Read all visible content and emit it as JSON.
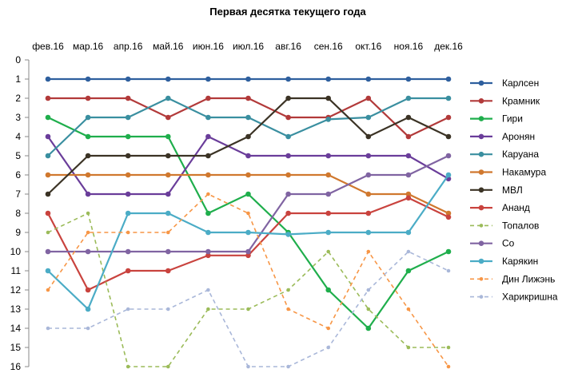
{
  "chart_data": {
    "type": "line",
    "title": "Первая десятка текущего года",
    "xlabel": "",
    "ylabel": "",
    "categories": [
      "фев.16",
      "мар.16",
      "апр.16",
      "май.16",
      "июн.16",
      "июл.16",
      "авг.16",
      "сен.16",
      "окт.16",
      "ноя.16",
      "дек.16"
    ],
    "y_axis": {
      "min": 0,
      "max": 16,
      "reversed": true,
      "ticks": [
        0,
        1,
        2,
        3,
        4,
        5,
        6,
        7,
        8,
        9,
        10,
        11,
        12,
        13,
        14,
        15,
        16
      ]
    },
    "x_axis_position": "top",
    "grid": false,
    "legend_position": "right",
    "series": [
      {
        "name": "Карлсен",
        "color": "#2E5F9E",
        "style": "solid",
        "values": [
          1,
          1,
          1,
          1,
          1,
          1,
          1,
          1,
          1,
          1,
          1
        ]
      },
      {
        "name": "Крамник",
        "color": "#B23A3A",
        "style": "solid",
        "values": [
          2,
          2,
          2,
          3,
          2,
          2,
          3,
          3,
          2,
          4,
          3
        ]
      },
      {
        "name": "Гири",
        "color": "#1FAE4C",
        "style": "solid",
        "values": [
          3,
          4,
          4,
          4,
          8,
          7,
          9,
          12,
          14,
          11,
          10
        ]
      },
      {
        "name": "Аронян",
        "color": "#6A3D9A",
        "style": "solid",
        "values": [
          4,
          7,
          7,
          7,
          4,
          5,
          5,
          5,
          5,
          5,
          6.2
        ]
      },
      {
        "name": "Каруана",
        "color": "#3A8FA0",
        "style": "solid",
        "values": [
          5,
          3,
          3,
          2,
          3,
          3,
          4,
          3.1,
          3,
          2,
          2
        ]
      },
      {
        "name": "Накамура",
        "color": "#D0782E",
        "style": "solid",
        "values": [
          6,
          6,
          6,
          6,
          6,
          6,
          6,
          6,
          7,
          7,
          8
        ]
      },
      {
        "name": "МВЛ",
        "color": "#3B3325",
        "style": "solid",
        "values": [
          7,
          5,
          5,
          5,
          5,
          4,
          2,
          2,
          4,
          3,
          4
        ]
      },
      {
        "name": "Ананд",
        "color": "#C9433E",
        "style": "solid",
        "values": [
          8,
          12,
          11,
          11,
          10.2,
          10.2,
          8,
          8,
          8,
          7.2,
          8.2
        ]
      },
      {
        "name": "Топалов",
        "color": "#9BBB59",
        "style": "dashed",
        "values": [
          9,
          8,
          16,
          16,
          13,
          13,
          12,
          10,
          13,
          15,
          15
        ]
      },
      {
        "name": "Со",
        "color": "#8064A2",
        "style": "solid",
        "values": [
          10,
          10,
          10,
          10,
          10,
          10,
          7,
          7,
          6,
          6,
          5
        ]
      },
      {
        "name": "Карякин",
        "color": "#4BACC6",
        "style": "solid",
        "values": [
          11,
          13,
          8,
          8,
          9,
          9,
          9.1,
          9,
          9,
          9,
          6
        ]
      },
      {
        "name": "Дин Лижэнь",
        "color": "#F79646",
        "style": "dashed",
        "values": [
          12,
          9,
          9,
          9,
          7,
          8,
          13,
          14,
          10,
          13,
          16
        ]
      },
      {
        "name": "Харикришна",
        "color": "#A9B7D9",
        "style": "dashed",
        "values": [
          14,
          14,
          13,
          13,
          12,
          16,
          16,
          15,
          12,
          10,
          11
        ]
      }
    ]
  }
}
